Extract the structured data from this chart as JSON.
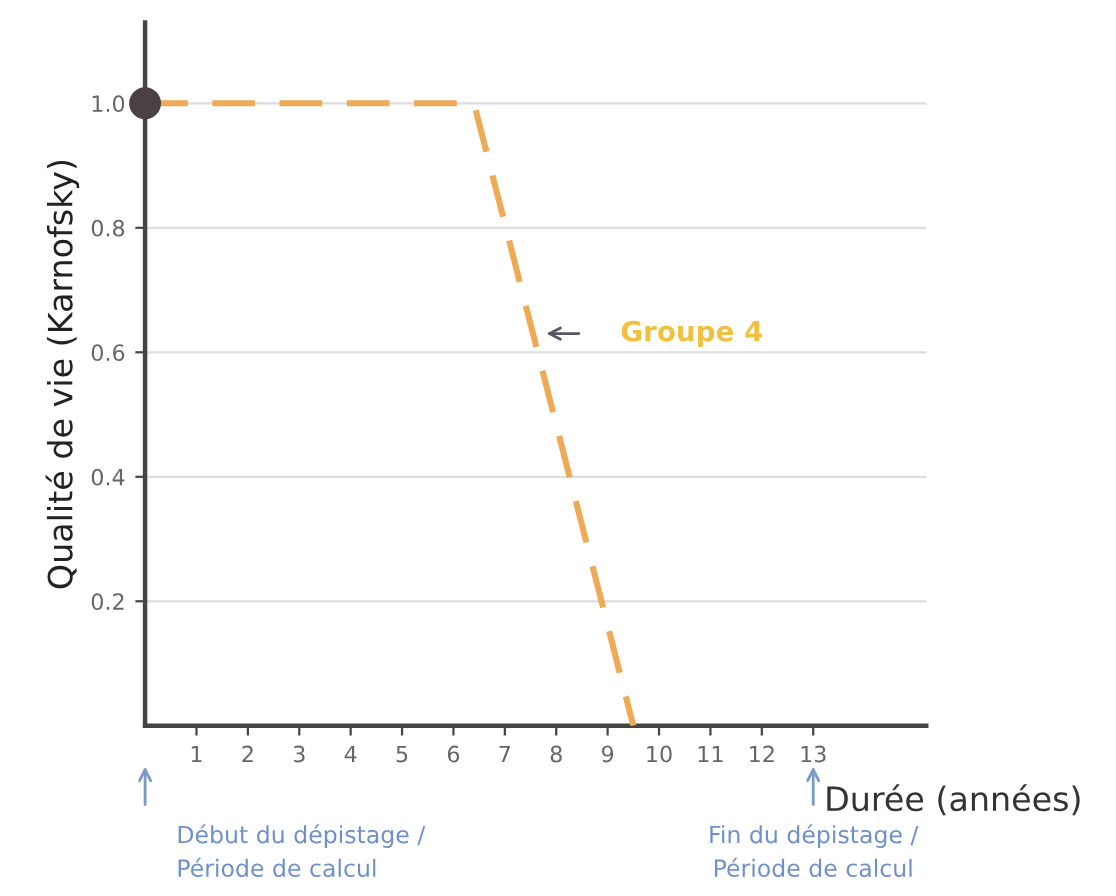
{
  "chart_data": {
    "type": "line",
    "xlabel": "Durée (années)",
    "ylabel": "Qualité de vie (Karnofsky)",
    "x": [
      0,
      6.4,
      9.5
    ],
    "series": [
      {
        "name": "Groupe 4",
        "color": "#eeaa55",
        "values": [
          1.0,
          1.0,
          0
        ],
        "line_style": "dashed",
        "marker": "none"
      },
      {
        "type": "scatter",
        "color": "#4a4045",
        "x": [
          0
        ],
        "values": [
          1.0
        ],
        "marker": "circle"
      }
    ],
    "xlim": [
      0,
      15.2
    ],
    "ylim": [
      0,
      1.13
    ],
    "xticks": [
      1,
      2,
      3,
      4,
      5,
      6,
      7,
      8,
      9,
      10,
      11,
      12,
      13
    ],
    "yticks": [
      0.2,
      0.4,
      0.6,
      0.8,
      {
        "value": 1.0,
        "label": "1.0"
      }
    ],
    "grid": "y",
    "annotations": [
      "Début du dépistage /\nPériode de calcul",
      "Fin du dépistage /\nPériode de calcul"
    ]
  }
}
